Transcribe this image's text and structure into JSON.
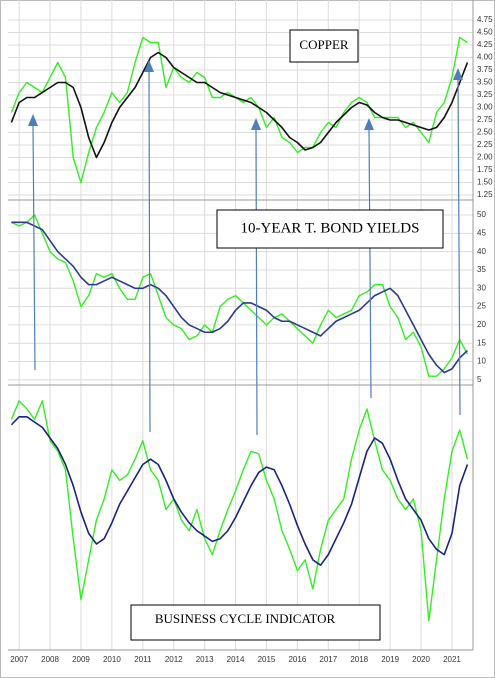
{
  "chart_data": [
    {
      "type": "line",
      "title": "COPPER",
      "x": [
        2006.75,
        2007,
        2007.25,
        2007.5,
        2007.75,
        2008,
        2008.25,
        2008.5,
        2008.75,
        2009,
        2009.25,
        2009.5,
        2009.75,
        2010,
        2010.25,
        2010.5,
        2010.75,
        2011,
        2011.25,
        2011.5,
        2011.75,
        2012,
        2012.25,
        2012.5,
        2012.75,
        2013,
        2013.25,
        2013.5,
        2013.75,
        2014,
        2014.25,
        2014.5,
        2014.75,
        2015,
        2015.25,
        2015.5,
        2015.75,
        2016,
        2016.25,
        2016.5,
        2016.75,
        2017,
        2017.25,
        2017.5,
        2017.75,
        2018,
        2018.25,
        2018.5,
        2018.75,
        2019,
        2019.25,
        2019.5,
        2019.75,
        2020,
        2020.25,
        2020.5,
        2020.75,
        2021,
        2021.25,
        2021.5
      ],
      "xlim": [
        2006.64,
        2021.68
      ],
      "ylim": [
        1.15,
        5.15
      ],
      "yticks": [
        4.75,
        {
          "value": 4.5,
          "label": "4.50"
        },
        4.25,
        {
          "value": 4,
          "label": "4.00"
        },
        3.75,
        {
          "value": 3.5,
          "label": "3.50"
        },
        3.25,
        {
          "value": 3,
          "label": "3.00"
        },
        2.75,
        {
          "value": 2.5,
          "label": "2.50"
        },
        2.25,
        {
          "value": 2,
          "label": "2.00"
        },
        1.75,
        {
          "value": 1.5,
          "label": "1.50"
        },
        1.25
      ],
      "grid": true,
      "series": [
        {
          "color": "#33ee22",
          "values": [
            2.9,
            3.3,
            3.5,
            3.4,
            3.3,
            3.6,
            3.9,
            3.6,
            2.0,
            1.5,
            2.1,
            2.6,
            2.9,
            3.3,
            3.1,
            3.3,
            3.9,
            4.4,
            4.3,
            4.3,
            3.4,
            3.8,
            3.6,
            3.5,
            3.7,
            3.6,
            3.2,
            3.2,
            3.3,
            3.2,
            3.1,
            3.2,
            3.0,
            2.6,
            2.8,
            2.4,
            2.3,
            2.1,
            2.2,
            2.2,
            2.5,
            2.7,
            2.6,
            2.9,
            3.1,
            3.2,
            3.1,
            2.8,
            2.8,
            2.8,
            2.8,
            2.6,
            2.7,
            2.5,
            2.3,
            2.9,
            3.1,
            3.6,
            4.4,
            4.3
          ]
        },
        {
          "color": "#111111",
          "values": [
            2.7,
            3.1,
            3.2,
            3.2,
            3.3,
            3.4,
            3.5,
            3.5,
            3.4,
            3.0,
            2.4,
            2.0,
            2.3,
            2.7,
            3.0,
            3.2,
            3.4,
            3.7,
            4.0,
            4.1,
            4.0,
            3.8,
            3.7,
            3.6,
            3.5,
            3.5,
            3.4,
            3.3,
            3.25,
            3.2,
            3.15,
            3.1,
            3.0,
            2.9,
            2.75,
            2.6,
            2.4,
            2.3,
            2.15,
            2.2,
            2.3,
            2.5,
            2.7,
            2.85,
            3.0,
            3.1,
            3.05,
            2.9,
            2.8,
            2.75,
            2.75,
            2.7,
            2.65,
            2.6,
            2.55,
            2.6,
            2.8,
            3.1,
            3.5,
            3.9
          ]
        }
      ]
    },
    {
      "type": "line",
      "title": "10-YEAR T. BOND YIELDS",
      "x": [
        2006.75,
        2007,
        2007.25,
        2007.5,
        2007.75,
        2008,
        2008.25,
        2008.5,
        2008.75,
        2009,
        2009.25,
        2009.5,
        2009.75,
        2010,
        2010.25,
        2010.5,
        2010.75,
        2011,
        2011.25,
        2011.5,
        2011.75,
        2012,
        2012.25,
        2012.5,
        2012.75,
        2013,
        2013.25,
        2013.5,
        2013.75,
        2014,
        2014.25,
        2014.5,
        2014.75,
        2015,
        2015.25,
        2015.5,
        2015.75,
        2016,
        2016.25,
        2016.5,
        2016.75,
        2017,
        2017.25,
        2017.5,
        2017.75,
        2018,
        2018.25,
        2018.5,
        2018.75,
        2019,
        2019.25,
        2019.5,
        2019.75,
        2020,
        2020.25,
        2020.5,
        2020.75,
        2021,
        2021.25,
        2021.5
      ],
      "xlim": [
        2006.64,
        2021.68
      ],
      "ylim": [
        3.6,
        54.1
      ],
      "yticks": [
        50,
        45,
        40,
        35,
        30,
        25,
        20,
        15,
        10,
        5
      ],
      "grid": true,
      "series": [
        {
          "color": "#33ee22",
          "values": [
            48,
            47,
            48,
            50,
            45,
            40,
            38,
            37,
            32,
            25,
            28,
            34,
            33,
            34,
            30,
            27,
            27,
            33,
            34,
            28,
            22,
            20,
            19,
            16,
            17,
            20,
            18,
            25,
            27,
            28,
            26,
            24,
            22,
            20,
            22,
            23,
            21,
            19,
            17,
            15,
            20,
            24,
            22,
            23,
            24,
            28,
            29,
            31,
            31,
            25,
            22,
            16,
            18,
            14,
            6,
            6,
            8,
            11,
            16,
            12
          ]
        },
        {
          "color": "#2b3a8f",
          "values": [
            48,
            48,
            48,
            47,
            46,
            43,
            40,
            38,
            36,
            33,
            31,
            31,
            32,
            33,
            32,
            31,
            30,
            30,
            31,
            30,
            28,
            25,
            22,
            20,
            19,
            18,
            18,
            19,
            21,
            24,
            26,
            26,
            25,
            24,
            22,
            21,
            21,
            20,
            19,
            18,
            17,
            19,
            21,
            22,
            23,
            24,
            26,
            28,
            29,
            30,
            28,
            24,
            20,
            16,
            12,
            9,
            7,
            8,
            11,
            13
          ]
        }
      ]
    },
    {
      "type": "line",
      "title": "BUSINESS CYCLE INDICATOR",
      "x": [
        2006.75,
        2007,
        2007.25,
        2007.5,
        2007.75,
        2008,
        2008.25,
        2008.5,
        2008.75,
        2009,
        2009.25,
        2009.5,
        2009.75,
        2010,
        2010.25,
        2010.5,
        2010.75,
        2011,
        2011.25,
        2011.5,
        2011.75,
        2012,
        2012.25,
        2012.5,
        2012.75,
        2013,
        2013.25,
        2013.5,
        2013.75,
        2014,
        2014.25,
        2014.5,
        2014.75,
        2015,
        2015.25,
        2015.5,
        2015.75,
        2016,
        2016.25,
        2016.5,
        2016.75,
        2017,
        2017.25,
        2017.5,
        2017.75,
        2018,
        2018.25,
        2018.5,
        2018.75,
        2019,
        2019.25,
        2019.5,
        2019.75,
        2020,
        2020.25,
        2020.5,
        2020.75,
        2021,
        2021.25,
        2021.5
      ],
      "xlim": [
        2006.64,
        2021.68
      ],
      "xticks": [
        2007,
        2008,
        2009,
        2010,
        2011,
        2012,
        2013,
        2014,
        2015,
        2016,
        2017,
        2018,
        2019,
        2020,
        2021
      ],
      "ylim": [
        0,
        100
      ],
      "grid": true,
      "series": [
        {
          "color": "#33ee22",
          "values": [
            87,
            94,
            91,
            87,
            94,
            79,
            75,
            68,
            42,
            19,
            34,
            49,
            57,
            68,
            64,
            66,
            72,
            79,
            68,
            64,
            53,
            57,
            49,
            45,
            53,
            42,
            36,
            45,
            53,
            60,
            68,
            75,
            74,
            64,
            57,
            45,
            38,
            30,
            34,
            23,
            38,
            49,
            53,
            57,
            72,
            83,
            91,
            79,
            68,
            64,
            57,
            53,
            57,
            45,
            11,
            34,
            57,
            75,
            83,
            72
          ]
        },
        {
          "color": "#1a237e",
          "values": [
            85,
            88,
            88,
            86,
            84,
            80,
            76,
            70,
            62,
            52,
            44,
            40,
            42,
            48,
            55,
            60,
            65,
            70,
            72,
            70,
            64,
            57,
            52,
            48,
            45,
            43,
            41,
            42,
            45,
            50,
            56,
            62,
            67,
            69,
            68,
            62,
            55,
            47,
            40,
            34,
            32,
            36,
            42,
            48,
            55,
            65,
            75,
            80,
            78,
            72,
            64,
            57,
            53,
            49,
            42,
            38,
            36,
            44,
            62,
            70
          ]
        }
      ]
    }
  ]
}
